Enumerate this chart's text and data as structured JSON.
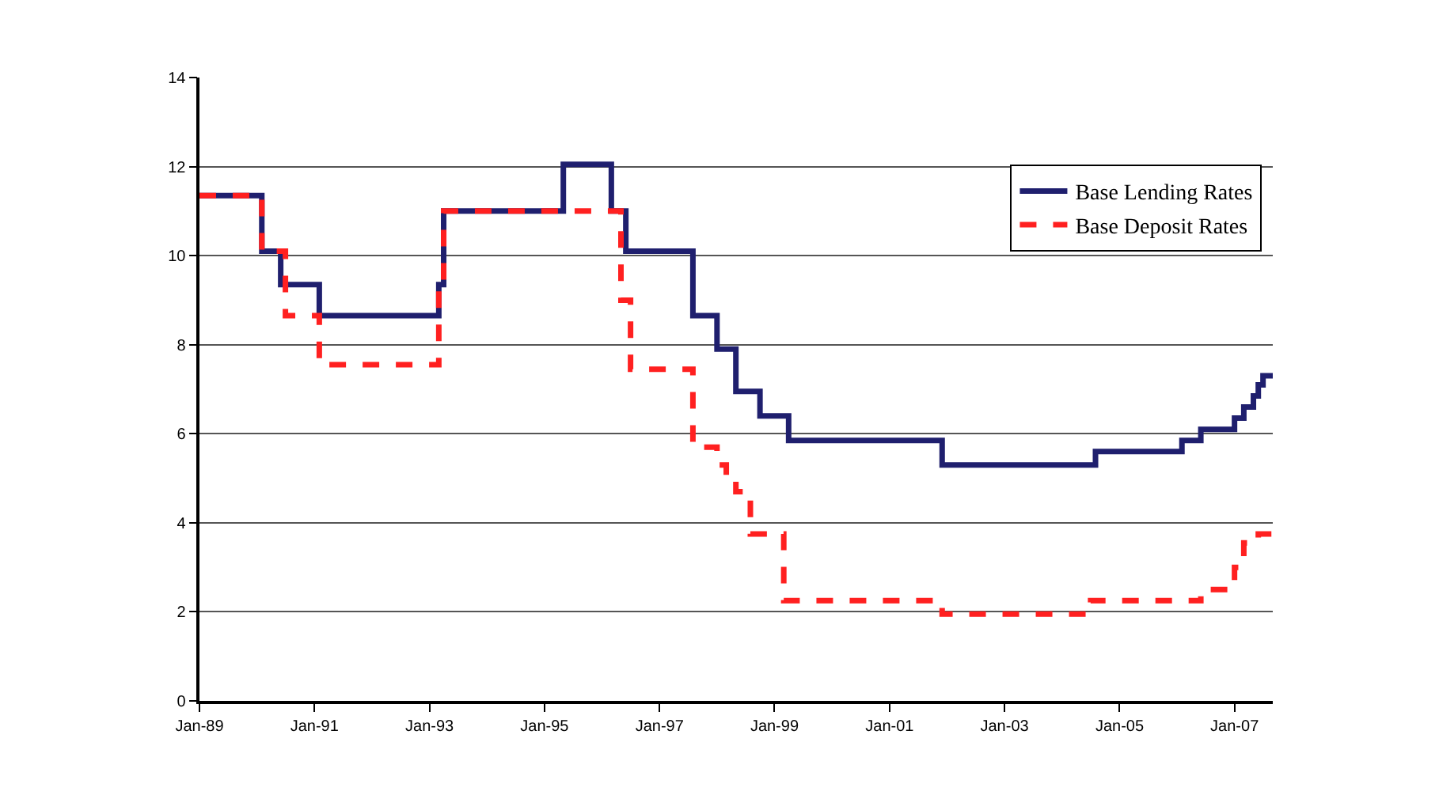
{
  "chart_data": {
    "type": "step",
    "series": [
      {
        "name": "Base Lending Rates",
        "color": "#1f1f6e",
        "line_style": "solid",
        "x": [
          "1989-01",
          "1990-02",
          "1990-06",
          "1991-02",
          "1993-03",
          "1993-04",
          "1995-05",
          "1996-03",
          "1996-06",
          "1997-08",
          "1998-01",
          "1998-05",
          "1998-10",
          "1999-04",
          "2001-12",
          "2004-08",
          "2006-02",
          "2006-06",
          "2007-01",
          "2007-03",
          "2007-05",
          "2007-06",
          "2007-07",
          "2007-09"
        ],
        "values": [
          11.35,
          10.1,
          9.35,
          8.65,
          9.35,
          11.0,
          12.05,
          11.0,
          10.1,
          8.65,
          7.9,
          6.95,
          6.4,
          5.85,
          5.3,
          5.6,
          5.85,
          6.1,
          6.35,
          6.6,
          6.85,
          7.1,
          7.3,
          7.3
        ]
      },
      {
        "name": "Base Deposit Rates",
        "color": "#ff2020",
        "line_style": "dashed",
        "x": [
          "1989-01",
          "1990-02",
          "1990-07",
          "1991-02",
          "1993-03",
          "1993-04",
          "1993-05",
          "1996-03",
          "1996-05",
          "1996-07",
          "1997-08",
          "1998-01",
          "1998-03",
          "1998-05",
          "1998-08",
          "1998-10",
          "1999-03",
          "2001-12",
          "2004-07",
          "2006-06",
          "2007-01",
          "2007-03",
          "2007-06",
          "2007-09"
        ],
        "values": [
          11.35,
          10.1,
          8.65,
          7.55,
          9.35,
          11.0,
          11.0,
          11.0,
          9.0,
          7.45,
          5.7,
          5.3,
          5.0,
          4.7,
          3.75,
          3.75,
          2.25,
          1.95,
          2.25,
          2.5,
          3.0,
          3.55,
          3.75,
          3.75
        ]
      }
    ],
    "xlim": [
      "1989-01",
      "2007-09"
    ],
    "xticks": [
      {
        "value": "1989-01",
        "label": "Jan-89"
      },
      {
        "value": "1991-01",
        "label": "Jan-91"
      },
      {
        "value": "1993-01",
        "label": "Jan-93"
      },
      {
        "value": "1995-01",
        "label": "Jan-95"
      },
      {
        "value": "1997-01",
        "label": "Jan-97"
      },
      {
        "value": "1999-01",
        "label": "Jan-99"
      },
      {
        "value": "2001-01",
        "label": "Jan-01"
      },
      {
        "value": "2003-01",
        "label": "Jan-03"
      },
      {
        "value": "2005-01",
        "label": "Jan-05"
      },
      {
        "value": "2007-01",
        "label": "Jan-07"
      }
    ],
    "ylim": [
      0,
      14
    ],
    "yticks": [
      0,
      2,
      4,
      6,
      8,
      10,
      12,
      14
    ],
    "grid": "y",
    "legend": "top right",
    "marker": "none"
  }
}
